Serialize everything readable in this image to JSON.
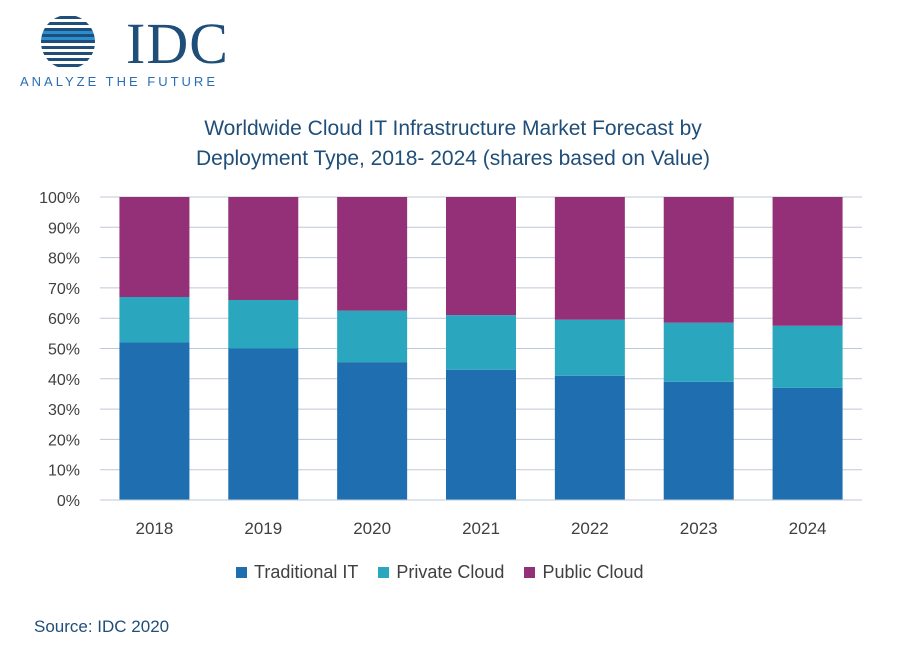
{
  "logo": {
    "name": "IDC",
    "tagline": "ANALYZE THE FUTURE"
  },
  "title_line1": "Worldwide Cloud IT Infrastructure Market Forecast by",
  "title_line2": "Deployment Type, 2018- 2024 (shares based on Value)",
  "source": "Source: IDC 2020",
  "colors": {
    "traditional": "#1f6fb0",
    "private": "#2aa6bf",
    "public": "#943078",
    "grid": "#bfc8d8",
    "axis_text": "#404040"
  },
  "chart_data": {
    "type": "bar",
    "stacked": true,
    "title": "Worldwide Cloud IT Infrastructure Market Forecast by Deployment Type, 2018- 2024 (shares based on Value)",
    "categories": [
      "2018",
      "2019",
      "2020",
      "2021",
      "2022",
      "2023",
      "2024"
    ],
    "series": [
      {
        "name": "Traditional IT",
        "values": [
          52,
          50,
          45.5,
          43,
          41,
          39,
          37
        ]
      },
      {
        "name": "Private Cloud",
        "values": [
          15,
          16,
          17,
          18,
          18.5,
          19.5,
          20.5
        ]
      },
      {
        "name": "Public Cloud",
        "values": [
          33,
          34,
          37.5,
          39,
          40.5,
          41.5,
          42.5
        ]
      }
    ],
    "ylim": [
      0,
      100
    ],
    "yticks": [
      "0%",
      "10%",
      "20%",
      "30%",
      "40%",
      "50%",
      "60%",
      "70%",
      "80%",
      "90%",
      "100%"
    ],
    "grid": true,
    "legend_position": "bottom"
  }
}
